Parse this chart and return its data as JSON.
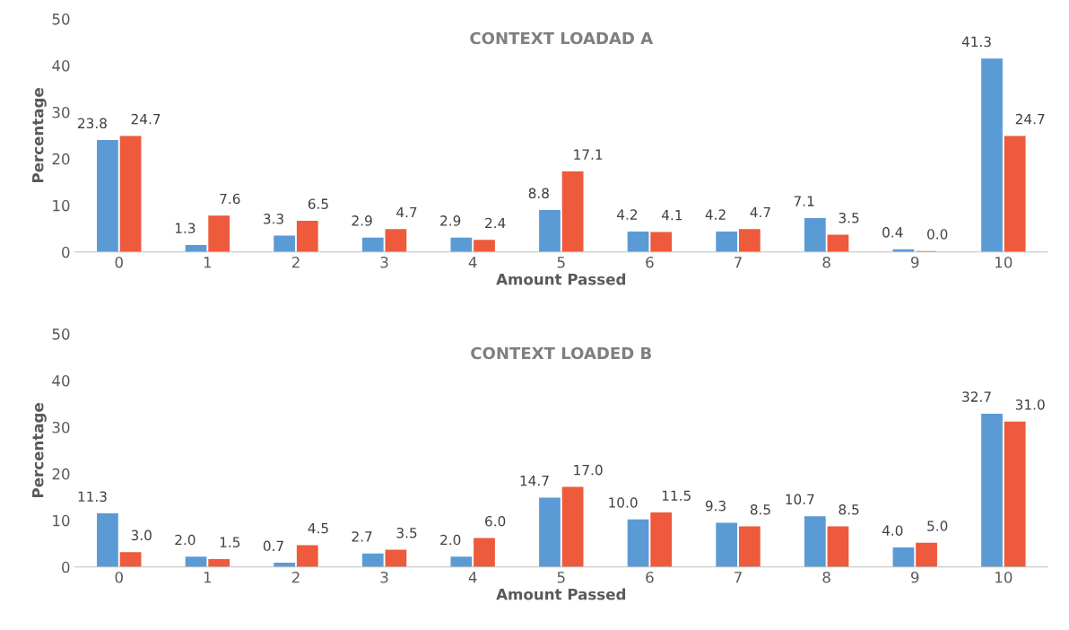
{
  "chart_data": [
    {
      "type": "bar",
      "title": "CONTEXT LOADAD A",
      "xlabel": "Amount Passed",
      "ylabel": "Percentage",
      "categories": [
        "0",
        "1",
        "2",
        "3",
        "4",
        "5",
        "6",
        "7",
        "8",
        "9",
        "10"
      ],
      "ylim": [
        0,
        50
      ],
      "yticks": [
        0,
        10,
        20,
        30,
        40,
        50
      ],
      "grid": false,
      "legend": false,
      "series": [
        {
          "color": "#5b9bd5",
          "values": [
            23.8,
            1.3,
            3.3,
            2.9,
            2.9,
            8.8,
            4.2,
            4.2,
            7.1,
            0.4,
            41.3
          ],
          "value_labels": [
            "23.8",
            "1.3",
            "3.3",
            "2.9",
            "2.9",
            "8.8",
            "4.2",
            "4.2",
            "7.1",
            "0.4",
            "41.3"
          ]
        },
        {
          "color": "#ee5a3c",
          "values": [
            24.7,
            7.6,
            6.5,
            4.7,
            2.4,
            17.1,
            4.1,
            4.7,
            3.5,
            0.0,
            24.7
          ],
          "value_labels": [
            "24.7",
            "7.6",
            "6.5",
            "4.7",
            "2.4",
            "17.1",
            "4.1",
            "4.7",
            "3.5",
            "0.0",
            "24.7"
          ]
        }
      ]
    },
    {
      "type": "bar",
      "title": "CONTEXT LOADED B",
      "xlabel": "Amount Passed",
      "ylabel": "Percentage",
      "categories": [
        "0",
        "1",
        "2",
        "3",
        "4",
        "5",
        "6",
        "7",
        "8",
        "9",
        "10"
      ],
      "ylim": [
        0,
        50
      ],
      "yticks": [
        0,
        10,
        20,
        30,
        40,
        50
      ],
      "grid": false,
      "legend": false,
      "series": [
        {
          "color": "#5b9bd5",
          "values": [
            11.3,
            2.0,
            0.7,
            2.7,
            2.0,
            14.7,
            10.0,
            9.3,
            10.7,
            4.0,
            32.7
          ],
          "value_labels": [
            "11.3",
            "2.0",
            "0.7",
            "2.7",
            "2.0",
            "14.7",
            "10.0",
            "9.3",
            "10.7",
            "4.0",
            "32.7"
          ]
        },
        {
          "color": "#ee5a3c",
          "values": [
            3.0,
            1.5,
            4.5,
            3.5,
            6.0,
            17.0,
            11.5,
            8.5,
            8.5,
            5.0,
            31.0
          ],
          "value_labels": [
            "3.0",
            "1.5",
            "4.5",
            "3.5",
            "6.0",
            "17.0",
            "11.5",
            "8.5",
            "8.5",
            "5.0",
            "31.0"
          ]
        }
      ]
    }
  ]
}
